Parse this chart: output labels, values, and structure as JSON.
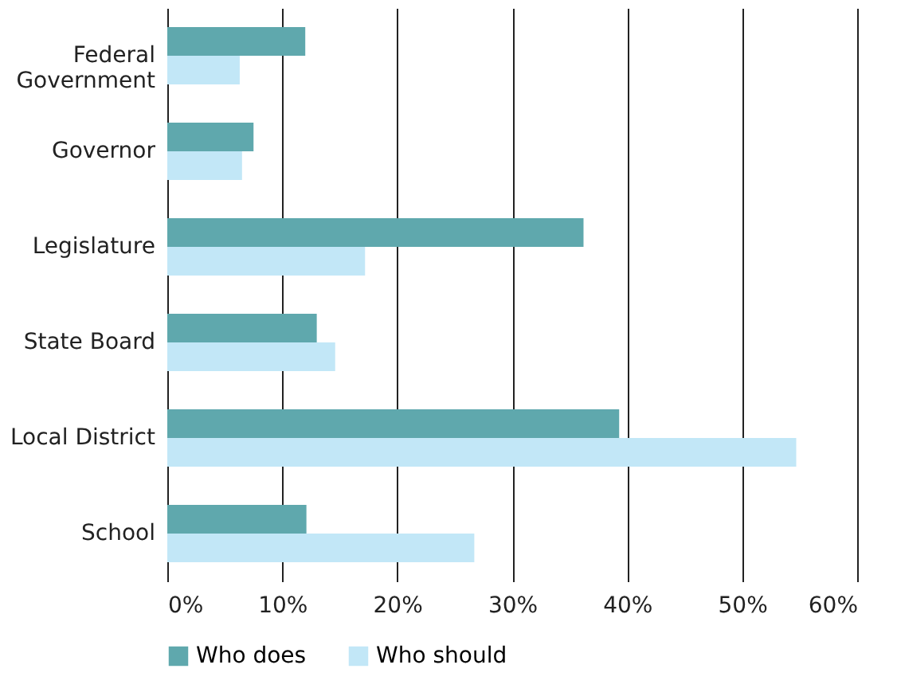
{
  "chart_data": {
    "type": "bar",
    "orientation": "horizontal",
    "categories": [
      "Federal Government",
      "Governor",
      "Legislature",
      "State Board",
      "Local District",
      "School"
    ],
    "series": [
      {
        "name": "Who does",
        "color": "#5fa8ad",
        "values": [
          12,
          7.5,
          36.2,
          13,
          39.3,
          12.1
        ]
      },
      {
        "name": "Who should",
        "color": "#c2e7f7",
        "values": [
          6.3,
          6.5,
          17.2,
          14.6,
          54.7,
          26.7
        ]
      }
    ],
    "xlim": [
      0,
      60
    ],
    "xticks": [
      {
        "value": 0,
        "label": "0%"
      },
      {
        "value": 10,
        "label": "10%"
      },
      {
        "value": 20,
        "label": "20%"
      },
      {
        "value": 30,
        "label": "30%"
      },
      {
        "value": 40,
        "label": "40%"
      },
      {
        "value": 50,
        "label": "50%"
      },
      {
        "value": 60,
        "label": "60%"
      }
    ],
    "grid": "x",
    "legend": "bottom"
  }
}
